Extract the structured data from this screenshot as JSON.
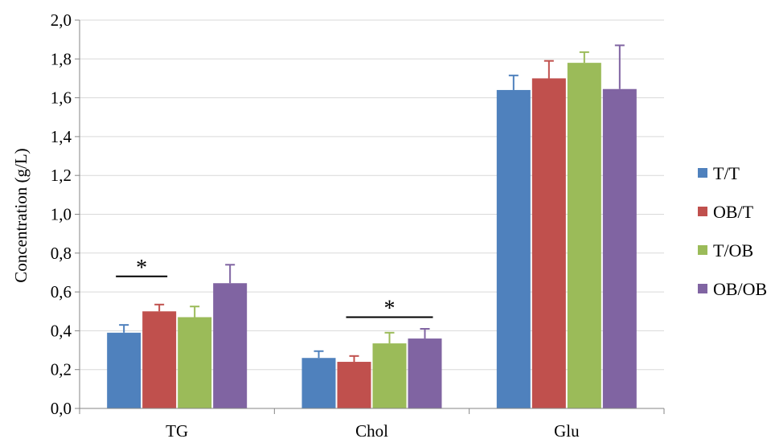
{
  "chart_data": {
    "type": "bar",
    "categories": [
      "TG",
      "Chol",
      "Glu"
    ],
    "series": [
      {
        "name": "T/T",
        "color": "#4F81BD",
        "values": [
          0.39,
          0.26,
          1.64
        ],
        "errors": [
          0.04,
          0.035,
          0.075
        ]
      },
      {
        "name": "OB/T",
        "color": "#C0504D",
        "values": [
          0.5,
          0.24,
          1.7
        ],
        "errors": [
          0.035,
          0.03,
          0.09
        ]
      },
      {
        "name": "T/OB",
        "color": "#9BBB59",
        "values": [
          0.47,
          0.335,
          1.78
        ],
        "errors": [
          0.055,
          0.055,
          0.055
        ]
      },
      {
        "name": "OB/OB",
        "color": "#8064A2",
        "values": [
          0.645,
          0.36,
          1.645
        ],
        "errors": [
          0.095,
          0.05,
          0.225
        ]
      }
    ],
    "ylabel": "Concentration (g/L)",
    "ylim": [
      0,
      2.0
    ],
    "yticks": [
      "0,0",
      "0,2",
      "0,4",
      "0,6",
      "0,8",
      "1,0",
      "1,2",
      "1,4",
      "1,6",
      "1,8",
      "2,0"
    ],
    "grid": true,
    "legend": "right",
    "annotations": [
      {
        "text": "*",
        "category": "TG",
        "from_series": 0,
        "to_series": 1,
        "y": 0.68
      },
      {
        "text": "*",
        "category": "Chol",
        "from_series": 1,
        "to_series": 3,
        "y": 0.47
      }
    ]
  }
}
